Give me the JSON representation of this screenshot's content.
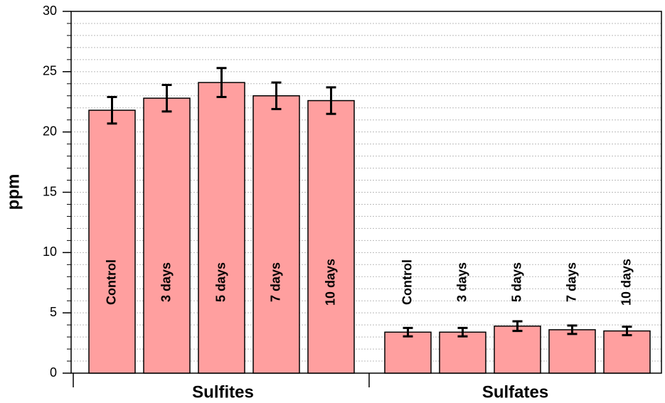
{
  "chart_data": {
    "type": "bar",
    "ylabel": "ppm",
    "color": "#ff9f9f",
    "ylim": [
      0,
      30
    ],
    "yticks": [
      0,
      5,
      10,
      15,
      20,
      25,
      30
    ],
    "minor_grid": true,
    "groups": [
      {
        "name": "Sulfites",
        "categories": [
          "Control",
          "3 days",
          "5 days",
          "7 days",
          "10 days"
        ],
        "values": [
          21.8,
          22.8,
          24.1,
          23.0,
          22.6
        ],
        "errors": [
          1.1,
          1.1,
          1.2,
          1.1,
          1.1
        ]
      },
      {
        "name": "Sulfates",
        "categories": [
          "Control",
          "3 days",
          "5 days",
          "7 days",
          "10 days"
        ],
        "values": [
          3.4,
          3.4,
          3.9,
          3.6,
          3.5
        ],
        "errors": [
          0.35,
          0.35,
          0.4,
          0.35,
          0.35
        ]
      }
    ]
  }
}
